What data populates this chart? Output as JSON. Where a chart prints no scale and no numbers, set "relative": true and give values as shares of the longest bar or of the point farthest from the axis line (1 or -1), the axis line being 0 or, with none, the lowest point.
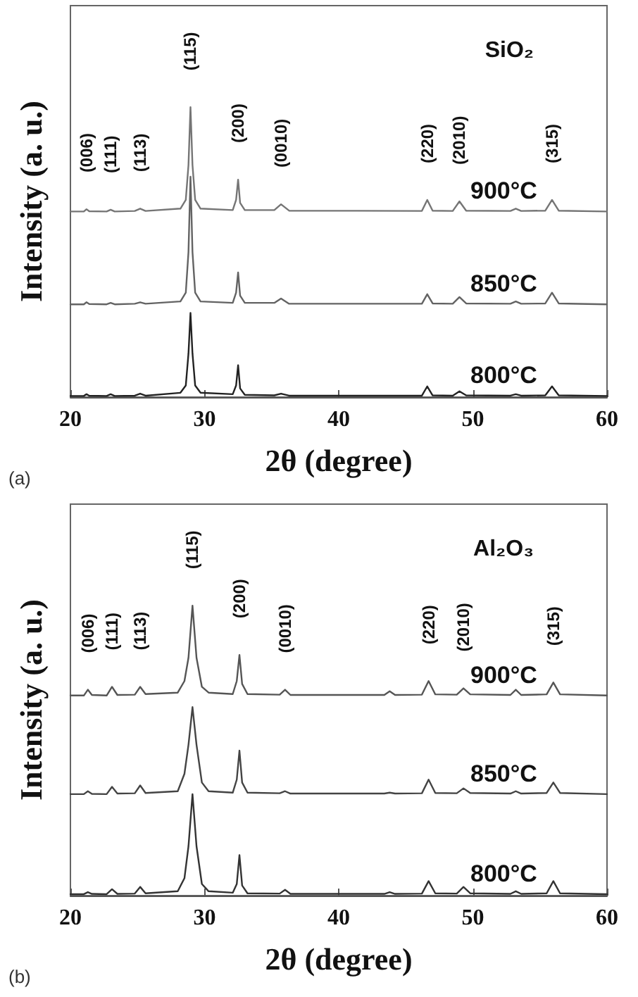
{
  "chart_data": [
    {
      "type": "line",
      "title": "SiO₂",
      "xlabel": "2θ (degree)",
      "ylabel": "Intensity (a. u.)",
      "relative": true,
      "marker": "none",
      "line_style": "solid",
      "xlim": [
        20,
        60
      ],
      "xticks": [
        20,
        30,
        40,
        50,
        60
      ],
      "x": [
        20,
        21.0,
        21.2,
        21.4,
        22.7,
        23.0,
        23.3,
        24.8,
        25.2,
        25.6,
        28.2,
        28.6,
        28.8,
        28.95,
        29.1,
        29.3,
        29.7,
        32.1,
        32.35,
        32.5,
        32.65,
        33.0,
        35.2,
        35.7,
        36.3,
        46.2,
        46.6,
        47.0,
        48.5,
        49.0,
        49.5,
        52.8,
        53.2,
        53.6,
        55.4,
        55.9,
        56.4,
        60
      ],
      "series": [
        {
          "name": "900°C",
          "color": "#757575",
          "values": [
            0.64,
            0.64,
            0.648,
            0.641,
            0.64,
            0.646,
            0.64,
            0.642,
            0.65,
            0.642,
            0.65,
            0.68,
            0.8,
            1,
            0.8,
            0.68,
            0.65,
            0.645,
            0.68,
            0.75,
            0.67,
            0.645,
            0.645,
            0.665,
            0.643,
            0.642,
            0.68,
            0.643,
            0.642,
            0.675,
            0.643,
            0.642,
            0.65,
            0.642,
            0.643,
            0.68,
            0.643,
            0.64
          ]
        },
        {
          "name": "850°C",
          "color": "#636363",
          "values": [
            0.32,
            0.32,
            0.327,
            0.321,
            0.32,
            0.325,
            0.32,
            0.322,
            0.327,
            0.322,
            0.33,
            0.36,
            0.5,
            0.76,
            0.5,
            0.36,
            0.33,
            0.325,
            0.36,
            0.43,
            0.35,
            0.325,
            0.325,
            0.34,
            0.322,
            0.322,
            0.355,
            0.323,
            0.322,
            0.345,
            0.323,
            0.322,
            0.33,
            0.322,
            0.323,
            0.36,
            0.323,
            0.32
          ]
        },
        {
          "name": "800°C",
          "color": "#222222",
          "values": [
            0.004,
            0.004,
            0.01,
            0.005,
            0.004,
            0.01,
            0.004,
            0.005,
            0.012,
            0.005,
            0.015,
            0.04,
            0.15,
            0.29,
            0.15,
            0.04,
            0.015,
            0.01,
            0.04,
            0.11,
            0.03,
            0.008,
            0.006,
            0.012,
            0.005,
            0.005,
            0.037,
            0.006,
            0.005,
            0.02,
            0.006,
            0.005,
            0.01,
            0.005,
            0.006,
            0.037,
            0.006,
            0.004
          ]
        }
      ],
      "annotations": [
        "(a)",
        {
          "text": "(006)",
          "x": 21.2,
          "y": 0.648
        },
        {
          "text": "(111)",
          "x": 23.0,
          "y": 0.646
        },
        {
          "text": "(113)",
          "x": 25.2,
          "y": 0.65
        },
        {
          "text": "(115)",
          "x": 28.95,
          "y": 1
        },
        {
          "text": "(200)",
          "x": 32.5,
          "y": 0.75
        },
        {
          "text": "(0010)",
          "x": 35.7,
          "y": 0.665
        },
        {
          "text": "(220)",
          "x": 46.6,
          "y": 0.68
        },
        {
          "text": "(2010)",
          "x": 49.0,
          "y": 0.675
        },
        {
          "text": "(315)",
          "x": 55.9,
          "y": 0.68
        }
      ]
    },
    {
      "type": "line",
      "title": "Al₂O₃",
      "xlabel": "2θ (degree)",
      "ylabel": "Intensity (a. u.)",
      "relative": true,
      "marker": "none",
      "line_style": "solid",
      "xlim": [
        20,
        60
      ],
      "xticks": [
        20,
        30,
        40,
        50,
        60
      ],
      "x": [
        20,
        21.0,
        21.3,
        21.6,
        22.7,
        23.1,
        23.5,
        24.8,
        25.2,
        25.6,
        28.0,
        28.5,
        28.8,
        29.1,
        29.4,
        29.8,
        30.3,
        32.1,
        32.4,
        32.6,
        32.8,
        33.2,
        35.6,
        36.0,
        36.4,
        43.4,
        43.8,
        44.2,
        46.2,
        46.7,
        47.2,
        48.8,
        49.3,
        49.8,
        52.8,
        53.2,
        53.6,
        55.5,
        56.0,
        56.5,
        60
      ],
      "series": [
        {
          "name": "900°C",
          "color": "#555555",
          "values": [
            0.69,
            0.69,
            0.71,
            0.692,
            0.69,
            0.72,
            0.692,
            0.693,
            0.72,
            0.695,
            0.7,
            0.74,
            0.82,
            1,
            0.82,
            0.72,
            0.7,
            0.695,
            0.74,
            0.83,
            0.73,
            0.695,
            0.693,
            0.71,
            0.692,
            0.692,
            0.705,
            0.692,
            0.693,
            0.74,
            0.694,
            0.693,
            0.715,
            0.694,
            0.692,
            0.71,
            0.692,
            0.694,
            0.735,
            0.694,
            0.69
          ]
        },
        {
          "name": "850°C",
          "color": "#444444",
          "values": [
            0.35,
            0.35,
            0.36,
            0.351,
            0.35,
            0.375,
            0.352,
            0.353,
            0.38,
            0.354,
            0.36,
            0.42,
            0.52,
            0.65,
            0.52,
            0.39,
            0.36,
            0.355,
            0.4,
            0.5,
            0.39,
            0.355,
            0.353,
            0.36,
            0.352,
            0.352,
            0.355,
            0.352,
            0.353,
            0.4,
            0.354,
            0.353,
            0.37,
            0.354,
            0.352,
            0.36,
            0.352,
            0.354,
            0.39,
            0.354,
            0.35
          ]
        },
        {
          "name": "800°C",
          "color": "#333333",
          "values": [
            0.005,
            0.005,
            0.012,
            0.006,
            0.005,
            0.022,
            0.006,
            0.007,
            0.03,
            0.008,
            0.015,
            0.06,
            0.17,
            0.35,
            0.17,
            0.04,
            0.015,
            0.01,
            0.04,
            0.14,
            0.035,
            0.008,
            0.007,
            0.02,
            0.006,
            0.006,
            0.012,
            0.006,
            0.007,
            0.05,
            0.008,
            0.007,
            0.03,
            0.008,
            0.006,
            0.015,
            0.006,
            0.008,
            0.05,
            0.008,
            0.005
          ]
        }
      ],
      "annotations": [
        "(b)",
        {
          "text": "(006)",
          "x": 21.3,
          "y": 0.71
        },
        {
          "text": "(111)",
          "x": 23.1,
          "y": 0.72
        },
        {
          "text": "(113)",
          "x": 25.2,
          "y": 0.72
        },
        {
          "text": "(115)",
          "x": 29.1,
          "y": 1
        },
        {
          "text": "(200)",
          "x": 32.6,
          "y": 0.83
        },
        {
          "text": "(0010)",
          "x": 36.0,
          "y": 0.71
        },
        {
          "text": "(220)",
          "x": 46.7,
          "y": 0.74
        },
        {
          "text": "(2010)",
          "x": 49.3,
          "y": 0.715
        },
        {
          "text": "(315)",
          "x": 56.0,
          "y": 0.735
        }
      ]
    }
  ]
}
